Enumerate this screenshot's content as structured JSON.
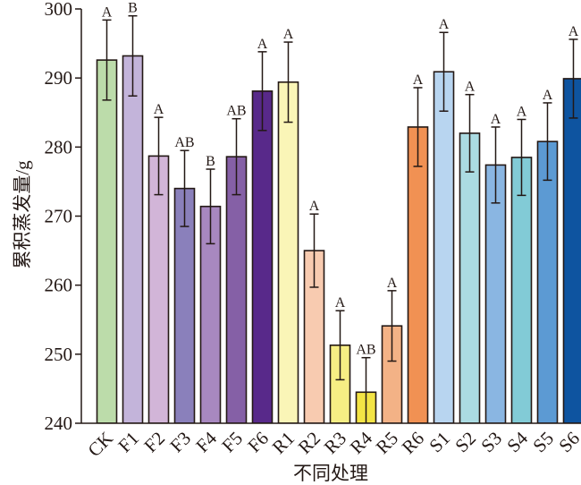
{
  "chart_data": {
    "type": "bar",
    "title": "",
    "xlabel": "不同处理",
    "ylabel": "累积蒸发量/g",
    "ylim": [
      240,
      300
    ],
    "yticks": [
      240,
      250,
      260,
      270,
      280,
      290,
      300
    ],
    "grid": false,
    "categories": [
      "CK",
      "F1",
      "F2",
      "F3",
      "F4",
      "F5",
      "F6",
      "R1",
      "R2",
      "R3",
      "R4",
      "R5",
      "R6",
      "S1",
      "S2",
      "S3",
      "S4",
      "S5",
      "S6"
    ],
    "values": [
      292.6,
      293.2,
      278.7,
      274.0,
      271.4,
      278.6,
      288.1,
      289.4,
      265.0,
      251.3,
      244.5,
      254.1,
      282.9,
      290.9,
      282.0,
      277.4,
      278.5,
      280.8,
      289.9
    ],
    "errors": [
      5.8,
      5.8,
      5.6,
      5.5,
      5.4,
      5.5,
      5.7,
      5.8,
      5.3,
      5.0,
      5.0,
      5.1,
      5.7,
      5.7,
      5.6,
      5.5,
      5.5,
      5.6,
      5.7
    ],
    "significance": [
      "A",
      "B",
      "A",
      "AB",
      "B",
      "AB",
      "A",
      "A",
      "A",
      "A",
      "AB",
      "A",
      "A",
      "A",
      "A",
      "A",
      "A",
      "A",
      "A"
    ],
    "colors": [
      "#bcdcaa",
      "#c3b4da",
      "#d2b5d8",
      "#8a80bb",
      "#a888c0",
      "#8560a6",
      "#58298a",
      "#faf5b7",
      "#f8cbb0",
      "#f6ee84",
      "#f3e445",
      "#f3b286",
      "#f19153",
      "#b8d5f0",
      "#abdbe2",
      "#8ab6e2",
      "#82cbd6",
      "#5c9ad3",
      "#0e54a0"
    ]
  }
}
